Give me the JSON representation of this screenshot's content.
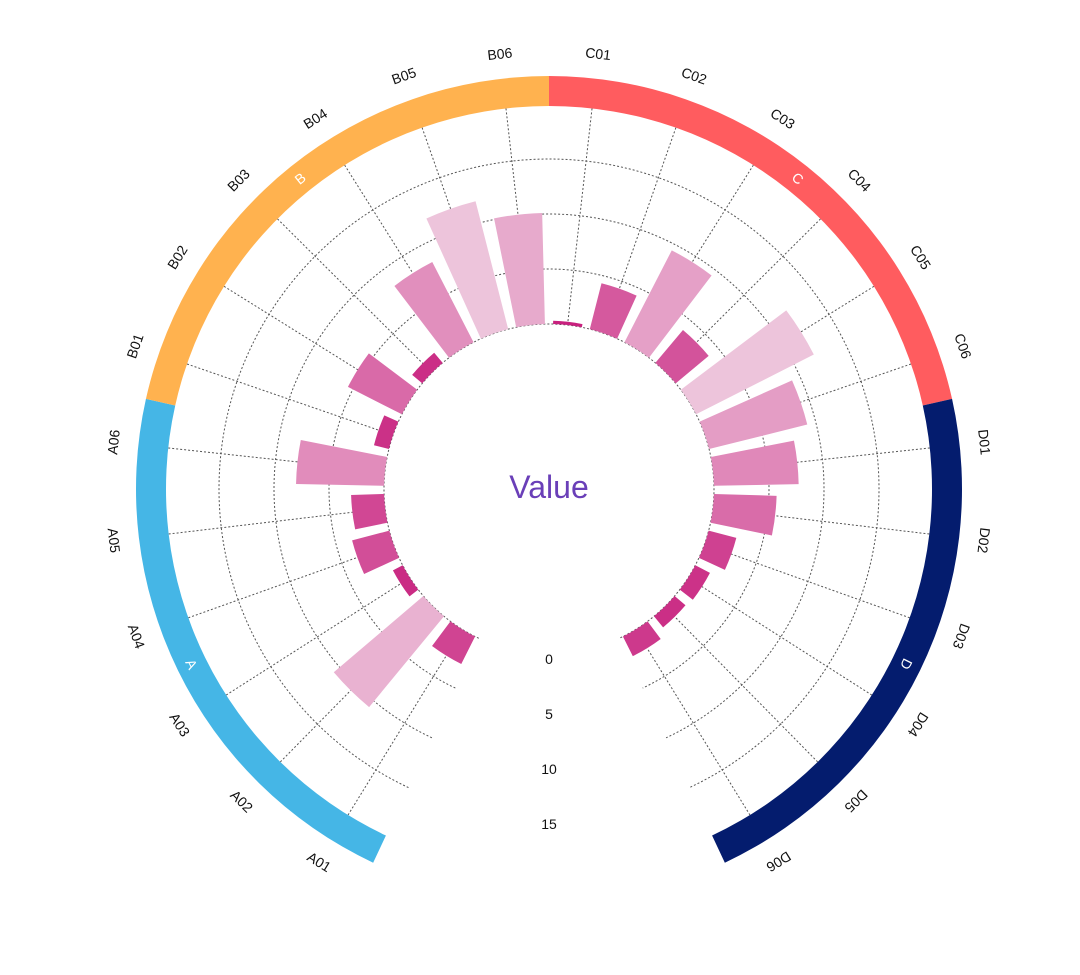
{
  "chart_data": {
    "type": "bar",
    "subtype": "circular-stacked-radial-bar",
    "title": "Value",
    "radial_ticks": [
      "0",
      "5",
      "10",
      "15"
    ],
    "radial_range": [
      0,
      15
    ],
    "gap_fraction": 0.14,
    "color_scale": {
      "low": "#f7eef3",
      "high": "#c71d7c",
      "domain": [
        0,
        15
      ]
    },
    "groups": [
      {
        "name": "A",
        "color": "#45b6e6",
        "categories": [
          "A01",
          "A02",
          "A03",
          "A04",
          "A05",
          "A06"
        ],
        "values": [
          2.8,
          10.7,
          1.0,
          3.5,
          3.0,
          8.0
        ]
      },
      {
        "name": "B",
        "color": "#ffb24f",
        "categories": [
          "B01",
          "B02",
          "B03",
          "B04",
          "B05",
          "B06"
        ],
        "values": [
          1.4,
          5.5,
          1.2,
          8.2,
          12.0,
          10.1
        ]
      },
      {
        "name": "C",
        "color": "#ff5c5f",
        "categories": [
          "C01",
          "C02",
          "C03",
          "C04",
          "C05",
          "C06"
        ],
        "values": [
          0.3,
          4.3,
          9.4,
          3.9,
          12.0,
          9.2
        ]
      },
      {
        "name": "D",
        "color": "#041c6e",
        "categories": [
          "D01",
          "D02",
          "D03",
          "D04",
          "D05",
          "D06"
        ],
        "values": [
          7.7,
          5.7,
          2.6,
          1.5,
          1.3,
          2.0
        ]
      }
    ]
  }
}
